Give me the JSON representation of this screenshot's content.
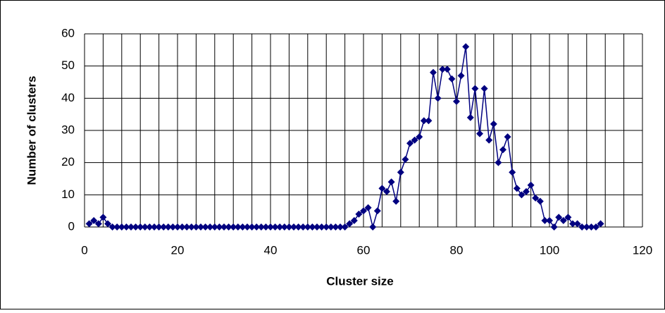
{
  "chart_data": {
    "type": "line",
    "xlabel": "Cluster size",
    "ylabel": "Number of clusters",
    "x": [
      1,
      2,
      3,
      4,
      5,
      6,
      7,
      8,
      9,
      10,
      11,
      12,
      13,
      14,
      15,
      16,
      17,
      18,
      19,
      20,
      21,
      22,
      23,
      24,
      25,
      26,
      27,
      28,
      29,
      30,
      31,
      32,
      33,
      34,
      35,
      36,
      37,
      38,
      39,
      40,
      41,
      42,
      43,
      44,
      45,
      46,
      47,
      48,
      49,
      50,
      51,
      52,
      53,
      54,
      55,
      56,
      57,
      58,
      59,
      60,
      61,
      62,
      63,
      64,
      65,
      66,
      67,
      68,
      69,
      70,
      71,
      72,
      73,
      74,
      75,
      76,
      77,
      78,
      79,
      80,
      81,
      82,
      83,
      84,
      85,
      86,
      87,
      88,
      89,
      90,
      91,
      92,
      93,
      94,
      95,
      96,
      97,
      98,
      99,
      100,
      101,
      102,
      103,
      104,
      105,
      106,
      107,
      108,
      109,
      110,
      111
    ],
    "series": [
      {
        "color": "#000080",
        "values": [
          1,
          2,
          1,
          3,
          1,
          0,
          0,
          0,
          0,
          0,
          0,
          0,
          0,
          0,
          0,
          0,
          0,
          0,
          0,
          0,
          0,
          0,
          0,
          0,
          0,
          0,
          0,
          0,
          0,
          0,
          0,
          0,
          0,
          0,
          0,
          0,
          0,
          0,
          0,
          0,
          0,
          0,
          0,
          0,
          0,
          0,
          0,
          0,
          0,
          0,
          0,
          0,
          0,
          0,
          0,
          0,
          1,
          2,
          4,
          5,
          6,
          0,
          5,
          12,
          11,
          14,
          8,
          17,
          21,
          26,
          27,
          28,
          33,
          33,
          48,
          40,
          49,
          49,
          46,
          39,
          47,
          56,
          34,
          43,
          29,
          43,
          27,
          32,
          20,
          24,
          28,
          17,
          12,
          10,
          11,
          13,
          9,
          8,
          2,
          2,
          0,
          3,
          2,
          3,
          1,
          1,
          0,
          0,
          0,
          0,
          1
        ]
      }
    ],
    "xlim": [
      0,
      120
    ],
    "xticks": [
      0,
      20,
      40,
      60,
      80,
      100,
      120
    ],
    "xgrid": [
      0,
      4,
      8,
      12,
      16,
      20,
      24,
      28,
      32,
      36,
      40,
      44,
      48,
      52,
      56,
      60,
      64,
      68,
      72,
      76,
      80,
      84,
      88,
      92,
      96,
      100,
      104,
      108,
      112,
      116,
      120
    ],
    "ylim": [
      0,
      60
    ],
    "yticks": [
      0,
      10,
      20,
      30,
      40,
      50,
      60
    ],
    "grid": true
  }
}
